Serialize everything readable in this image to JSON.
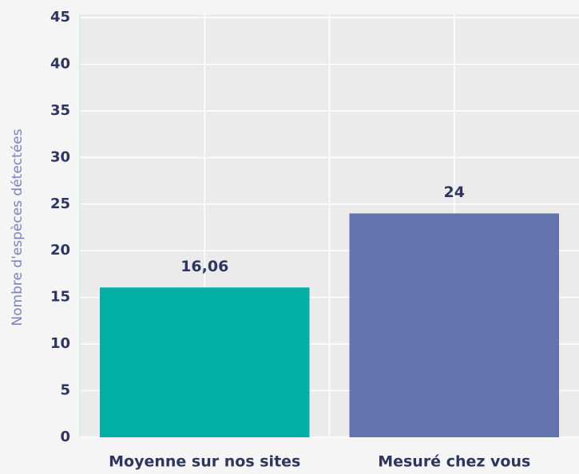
{
  "chart_data": {
    "type": "bar",
    "y_label": "Nombre d'espèces détectées",
    "categories": [
      "Moyenne sur nos sites",
      "Mesuré chez vous"
    ],
    "values": [
      16.06,
      24
    ],
    "value_labels": [
      "16,06",
      "24"
    ],
    "colors": [
      "#00b0a5",
      "#6373ae"
    ],
    "ylim": [
      0,
      45
    ],
    "yticks": [
      0,
      5,
      10,
      15,
      20,
      25,
      30,
      35,
      40,
      45
    ],
    "grid": true
  }
}
